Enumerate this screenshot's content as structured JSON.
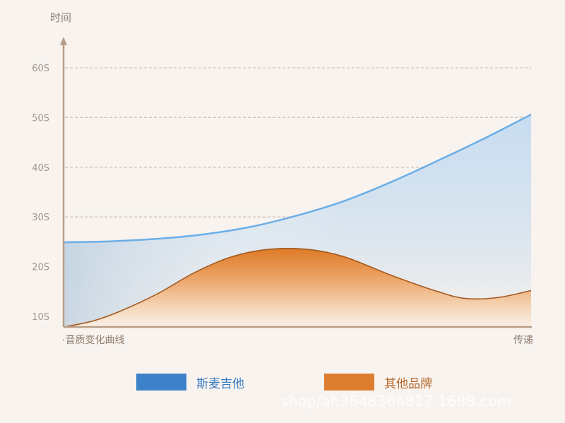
{
  "chart_data": {
    "type": "area",
    "ylabel": "时间",
    "xlabel_left": "·音质变化曲线",
    "xlabel_right": "传递",
    "y_ticks": [
      "10S",
      "20S",
      "30S",
      "40S",
      "50S",
      "60S"
    ],
    "y_tick_values": [
      10,
      20,
      30,
      40,
      50,
      60
    ],
    "ylim": [
      7.5,
      62.5
    ],
    "xlim": [
      0,
      1
    ],
    "grid": "dashed-horizontal",
    "legend_position": "bottom",
    "series": [
      {
        "name": "斯麦吉他",
        "color": "#3d82c8",
        "line_color": "#6aaee8",
        "points": [
          [
            0,
            24.9
          ],
          [
            0.1,
            25.1
          ],
          [
            0.2,
            25.6
          ],
          [
            0.3,
            26.5
          ],
          [
            0.4,
            28.0
          ],
          [
            0.5,
            30.3
          ],
          [
            0.6,
            33.2
          ],
          [
            0.7,
            37.0
          ],
          [
            0.8,
            41.3
          ],
          [
            0.9,
            45.8
          ],
          [
            1.0,
            50.6
          ]
        ]
      },
      {
        "name": "其他品牌",
        "color": "#dd7d30",
        "line_color": "#a35a1f",
        "points": [
          [
            0,
            7.5
          ],
          [
            0.06,
            9.0
          ],
          [
            0.12,
            11.0
          ],
          [
            0.2,
            14.5
          ],
          [
            0.28,
            18.8
          ],
          [
            0.36,
            22.0
          ],
          [
            0.44,
            23.5
          ],
          [
            0.52,
            23.5
          ],
          [
            0.6,
            22.0
          ],
          [
            0.7,
            18.3
          ],
          [
            0.8,
            15.0
          ],
          [
            0.86,
            13.6
          ],
          [
            0.93,
            13.8
          ],
          [
            1.0,
            15.2
          ]
        ]
      }
    ]
  },
  "watermark": "shop/ah3648366817.1688.com"
}
